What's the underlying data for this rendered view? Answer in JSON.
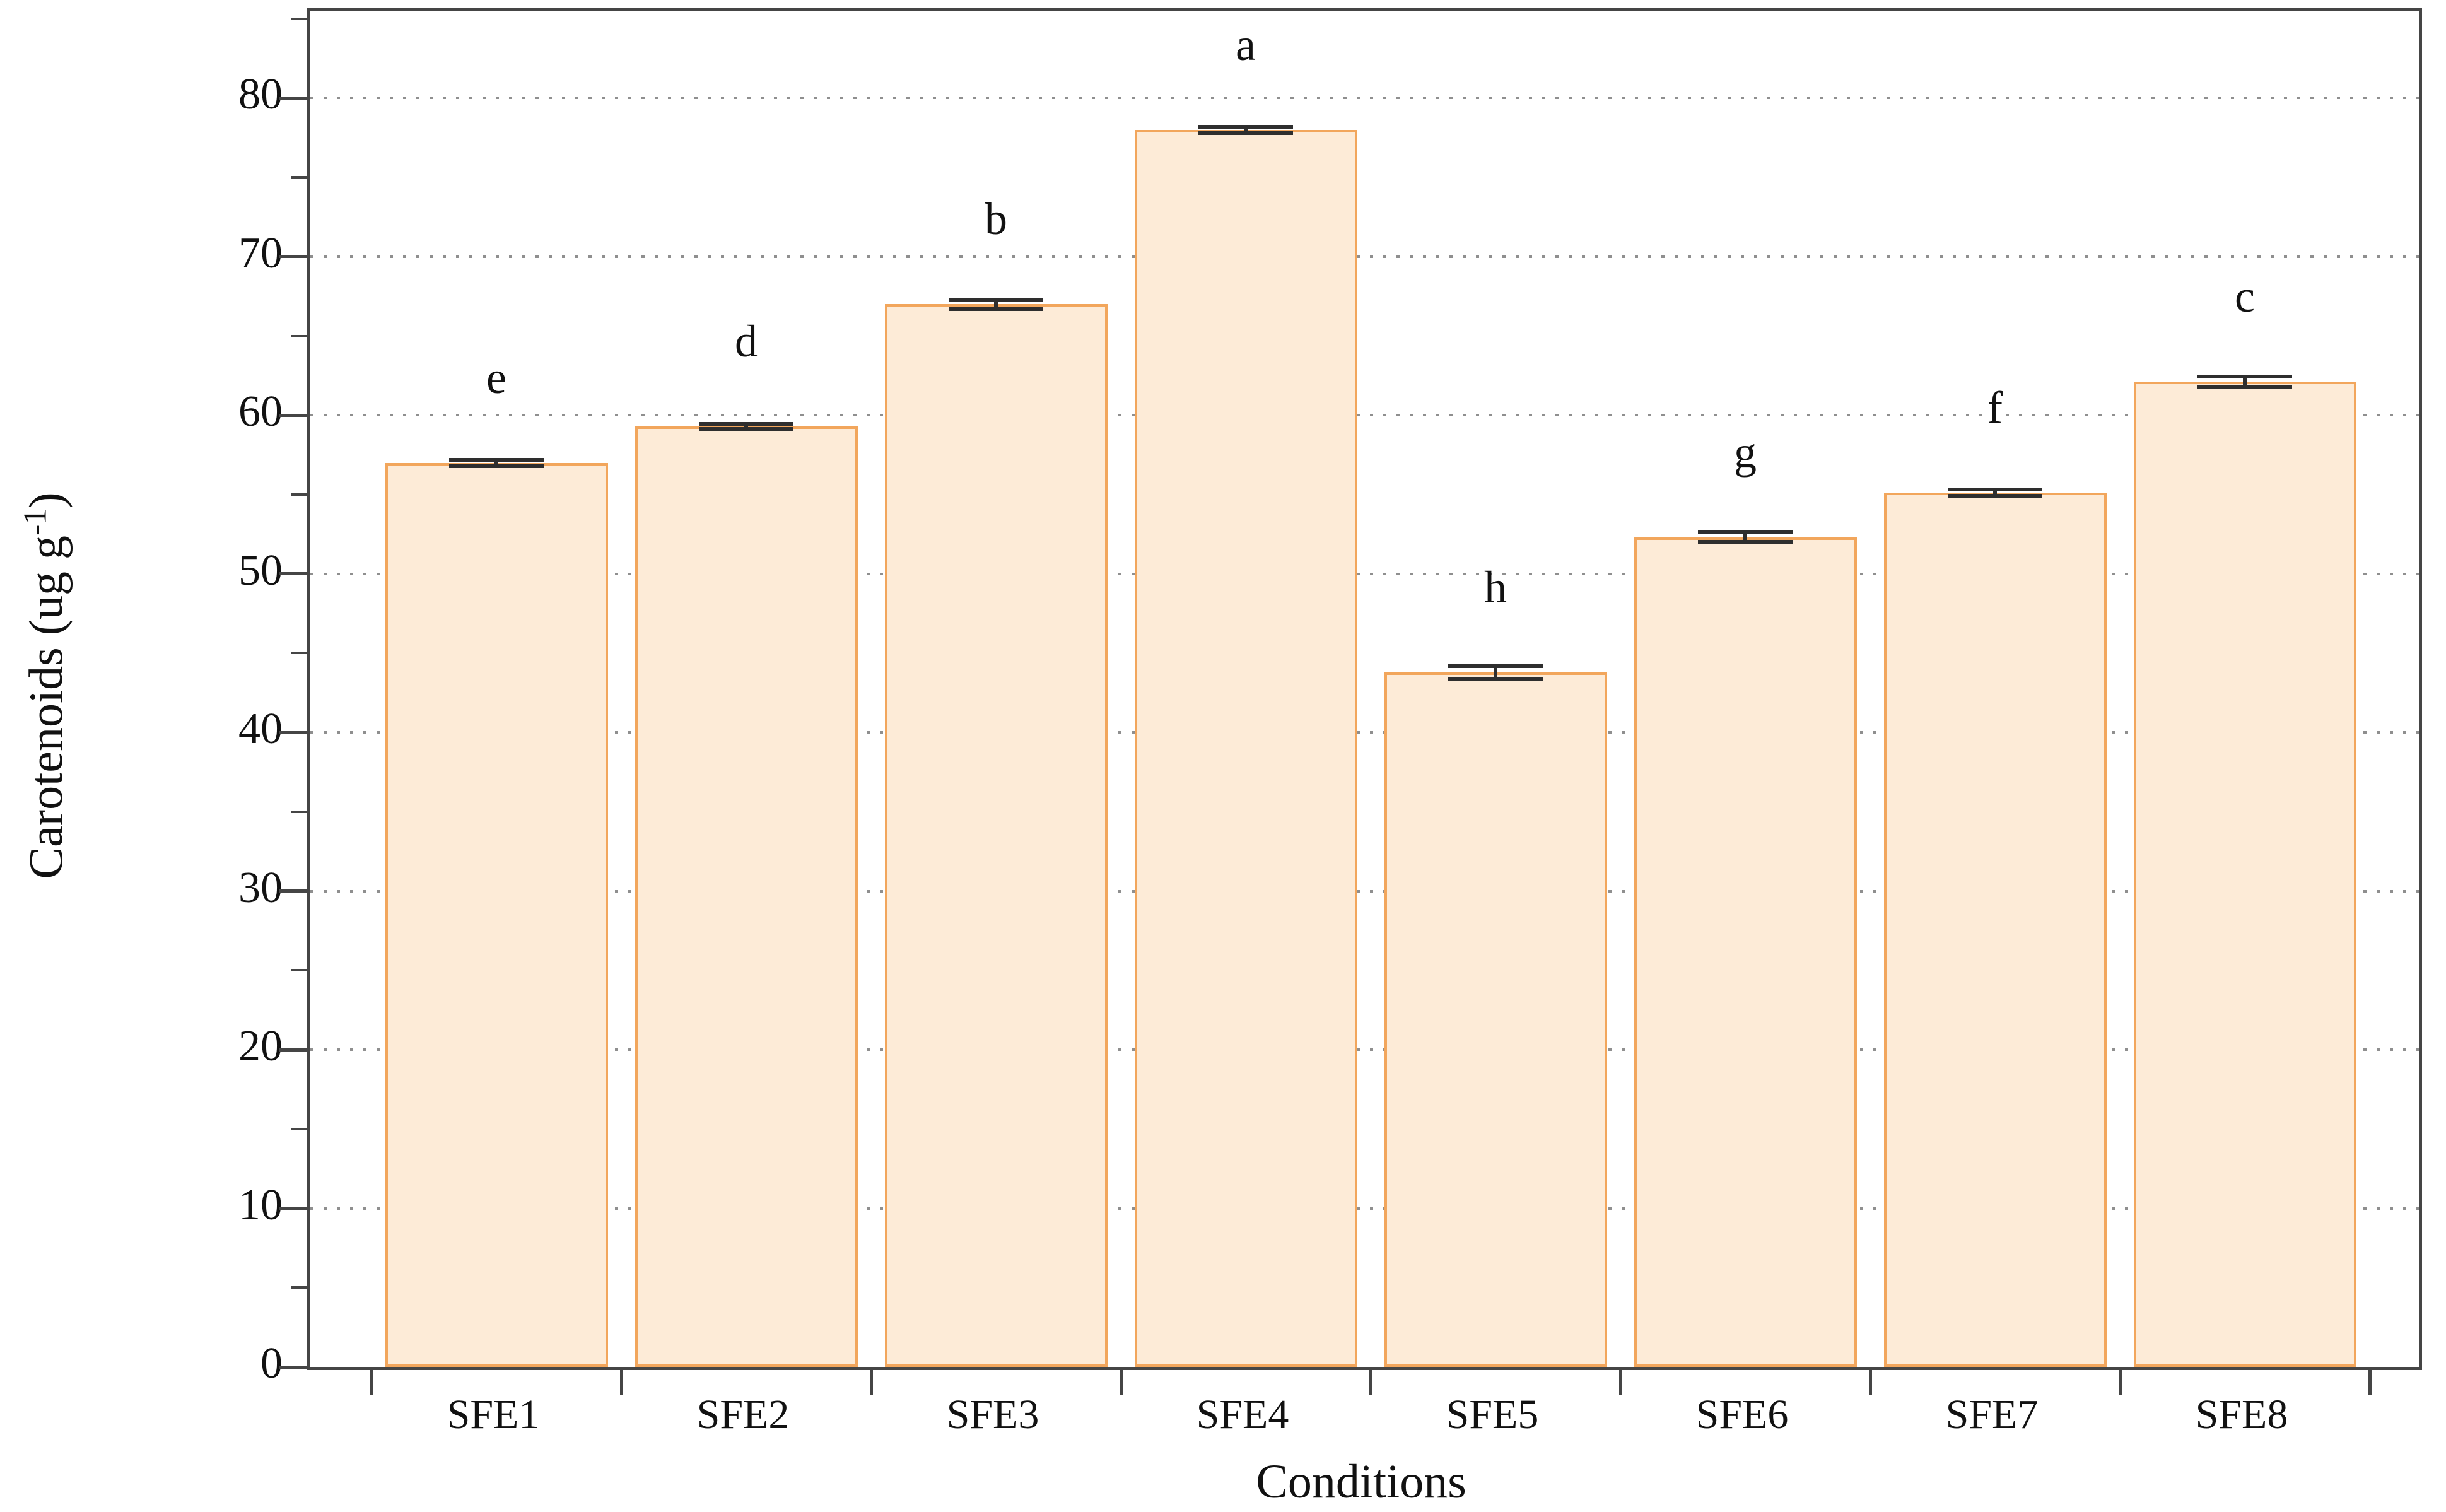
{
  "figure": {
    "xlabel": "Conditions",
    "ylabel_text": "Carotenoids (ug g-1)",
    "ylabel_prefix": "Carotenoids (ug g",
    "ylabel_sup": "-1",
    "ylabel_suffix": ")"
  },
  "chart_data": {
    "type": "bar",
    "title": "",
    "xlabel": "Conditions",
    "ylabel": "Carotenoids (ug g-1)",
    "categories": [
      "SFE1",
      "SFE2",
      "SFE3",
      "SFE4",
      "SFE5",
      "SFE6",
      "SFE7",
      "SFE8"
    ],
    "values": [
      57.0,
      59.3,
      67.0,
      78.0,
      43.8,
      52.3,
      55.1,
      62.1
    ],
    "errors": [
      0.2,
      0.15,
      0.3,
      0.2,
      0.4,
      0.3,
      0.2,
      0.35
    ],
    "bar_letters": [
      "e",
      "d",
      "b",
      "a",
      "h",
      "g",
      "f",
      "c"
    ],
    "ytick_values": [
      0,
      10,
      20,
      30,
      40,
      50,
      60,
      70,
      80
    ],
    "ytick_labels": [
      "0",
      "10",
      "20",
      "30",
      "40",
      "50",
      "60",
      "70",
      "80"
    ],
    "yminor_step": 5,
    "ylim": [
      0,
      85.5
    ],
    "grid": "horizontal dotted at major ticks",
    "legend": "none",
    "colors": {
      "bar_fill": "#FDEBD7",
      "bar_edge": "#F2A65C",
      "axis": "#454545",
      "grid": "#8f8f8f",
      "error_bar": "#2e2e2e",
      "text": "#111111"
    }
  }
}
